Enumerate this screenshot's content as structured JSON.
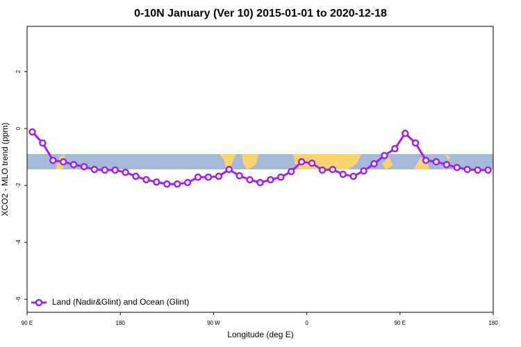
{
  "chart_data": {
    "type": "line",
    "title": "0-10N January (Ver 10)   2015-01-01 to 2020-12-18",
    "x_label": "Longitude (deg E)",
    "y_label": "XCO2 - MLO trend (ppm)",
    "x": [
      95,
      105,
      115,
      125,
      135,
      145,
      155,
      165,
      175,
      185,
      195,
      205,
      215,
      225,
      235,
      245,
      255,
      265,
      275,
      285,
      295,
      305,
      315,
      325,
      335,
      345,
      355,
      365,
      375,
      385,
      395,
      405,
      415,
      425,
      435,
      445,
      455,
      465,
      475,
      485,
      495,
      505,
      515,
      525,
      535
    ],
    "series": [
      {
        "name": "Land (Nadir&Glint) and Ocean (Glint)",
        "color": "#a020f0",
        "values": [
          -0.12,
          -0.51,
          -1.12,
          -1.17,
          -1.27,
          -1.34,
          -1.44,
          -1.46,
          -1.46,
          -1.54,
          -1.68,
          -1.8,
          -1.88,
          -1.95,
          -1.95,
          -1.9,
          -1.71,
          -1.71,
          -1.68,
          -1.44,
          -1.66,
          -1.8,
          -1.9,
          -1.8,
          -1.71,
          -1.51,
          -1.17,
          -1.22,
          -1.46,
          -1.44,
          -1.61,
          -1.68,
          -1.49,
          -1.24,
          -0.95,
          -0.71,
          -0.17,
          -0.51,
          -1.12,
          -1.17,
          -1.27,
          -1.37,
          -1.44,
          -1.46,
          -1.46
        ]
      }
    ],
    "xlim": [
      90,
      540
    ],
    "xticks": [
      {
        "value": 90,
        "label": "90 E"
      },
      180,
      {
        "value": 270,
        "label": "90 W"
      },
      {
        "value": 360,
        "label": "0"
      },
      {
        "value": 450,
        "label": "90 E"
      },
      {
        "value": 540,
        "label": "180"
      }
    ],
    "ylim": [
      -6.46,
      3.59
    ],
    "yticks": [
      -6,
      -4,
      -2,
      0,
      2
    ],
    "legend": "bottom-left"
  }
}
